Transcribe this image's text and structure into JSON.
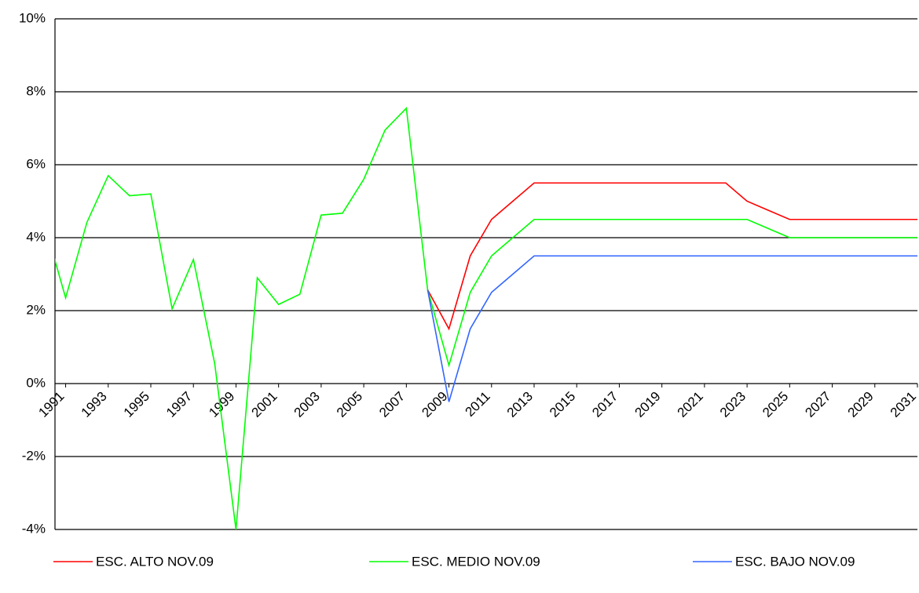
{
  "chart_data": {
    "type": "line",
    "x": [
      1990,
      1991,
      1992,
      1993,
      1994,
      1995,
      1996,
      1997,
      1998,
      1999,
      2000,
      2001,
      2002,
      2003,
      2004,
      2005,
      2006,
      2007,
      2008,
      2009,
      2010,
      2011,
      2012,
      2013,
      2014,
      2015,
      2016,
      2017,
      2018,
      2019,
      2020,
      2021,
      2022,
      2023,
      2024,
      2025,
      2026,
      2027,
      2028,
      2029,
      2030,
      2031
    ],
    "series": [
      {
        "name": "ESC. ALTO NOV.09",
        "color": "#ff0000",
        "values": [
          null,
          null,
          null,
          null,
          null,
          null,
          null,
          null,
          null,
          null,
          null,
          null,
          null,
          null,
          null,
          null,
          null,
          null,
          2.57,
          1.5,
          3.5,
          4.5,
          5.0,
          5.5,
          5.5,
          5.5,
          5.5,
          5.5,
          5.5,
          5.5,
          5.5,
          5.5,
          5.5,
          5.0,
          4.75,
          4.5,
          4.5,
          4.5,
          4.5,
          4.5,
          4.5,
          4.5
        ]
      },
      {
        "name": "ESC. MEDIO NOV.09",
        "color": "#00ff00",
        "values": [
          4.4,
          2.35,
          4.42,
          5.7,
          5.15,
          5.2,
          2.05,
          3.4,
          0.55,
          -4.0,
          2.9,
          2.17,
          2.45,
          4.62,
          4.67,
          5.6,
          6.95,
          7.55,
          2.57,
          0.5,
          2.5,
          3.5,
          4.0,
          4.5,
          4.5,
          4.5,
          4.5,
          4.5,
          4.5,
          4.5,
          4.5,
          4.5,
          4.5,
          4.5,
          4.25,
          4.0,
          4.0,
          4.0,
          4.0,
          4.0,
          4.0,
          4.0
        ]
      },
      {
        "name": "ESC. BAJO NOV.09",
        "color": "#3366ff",
        "values": [
          null,
          null,
          null,
          null,
          null,
          null,
          null,
          null,
          null,
          null,
          null,
          null,
          null,
          null,
          null,
          null,
          null,
          null,
          2.57,
          -0.5,
          1.5,
          2.5,
          3.0,
          3.5,
          3.5,
          3.5,
          3.5,
          3.5,
          3.5,
          3.5,
          3.5,
          3.5,
          3.5,
          3.5,
          3.5,
          3.5,
          3.5,
          3.5,
          3.5,
          3.5,
          3.5,
          3.5
        ]
      }
    ],
    "xlim": [
      1990.5,
      2031
    ],
    "xticks": [
      1991,
      1993,
      1995,
      1997,
      1999,
      2001,
      2003,
      2005,
      2007,
      2009,
      2011,
      2013,
      2015,
      2017,
      2019,
      2021,
      2023,
      2025,
      2027,
      2029,
      2031
    ],
    "ylim": [
      -4,
      10
    ],
    "yticks": [
      {
        "value": -4,
        "label": "-4%"
      },
      {
        "value": -2,
        "label": "-2%"
      },
      {
        "value": 0,
        "label": "0%"
      },
      {
        "value": 2,
        "label": "2%"
      },
      {
        "value": 4,
        "label": "4%"
      },
      {
        "value": 6,
        "label": "6%"
      },
      {
        "value": 8,
        "label": "8%"
      },
      {
        "value": 10,
        "label": "10%"
      }
    ],
    "grid": true
  }
}
